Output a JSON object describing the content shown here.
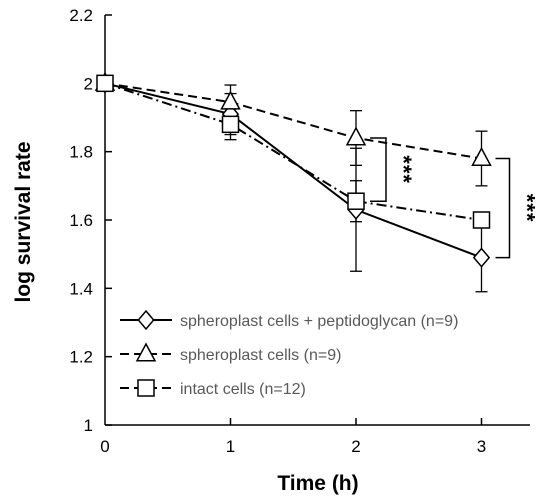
{
  "chart_data": {
    "type": "line",
    "title": "",
    "xlabel": "Time (h)",
    "ylabel": "log survival rate",
    "x": [
      0,
      1,
      2,
      3
    ],
    "xlim": [
      0,
      3.3
    ],
    "ylim": [
      1,
      2.2
    ],
    "x_ticks": [
      "0",
      "1",
      "2",
      "3"
    ],
    "y_ticks": [
      "1",
      "1.2",
      "1.4",
      "1.6",
      "1.8",
      "2",
      "2.2"
    ],
    "grid": false,
    "legend_position": "bottom-left",
    "series": [
      {
        "name": "spheroplast cells + peptidoglycan (n=9)",
        "marker": "diamond",
        "line_style": "solid",
        "values": [
          2.0,
          1.91,
          1.63,
          1.49
        ],
        "error": [
          0.0,
          0.06,
          0.18,
          0.1
        ]
      },
      {
        "name": "spheroplast cells (n=9)",
        "marker": "triangle",
        "line_style": "dashed",
        "values": [
          2.0,
          1.945,
          1.84,
          1.78
        ],
        "error": [
          0.0,
          0.05,
          0.08,
          0.08
        ]
      },
      {
        "name": "intact cells (n=12)",
        "marker": "square",
        "line_style": "dash-dot",
        "values": [
          2.0,
          1.88,
          1.655,
          1.6
        ],
        "error": [
          0.0,
          0.045,
          0.06,
          0.0
        ]
      }
    ],
    "annotations": [
      {
        "text": "***",
        "x": 2,
        "between": [
          1.655,
          1.84
        ]
      },
      {
        "text": "***",
        "x": 3,
        "between": [
          1.49,
          1.78
        ]
      }
    ]
  }
}
